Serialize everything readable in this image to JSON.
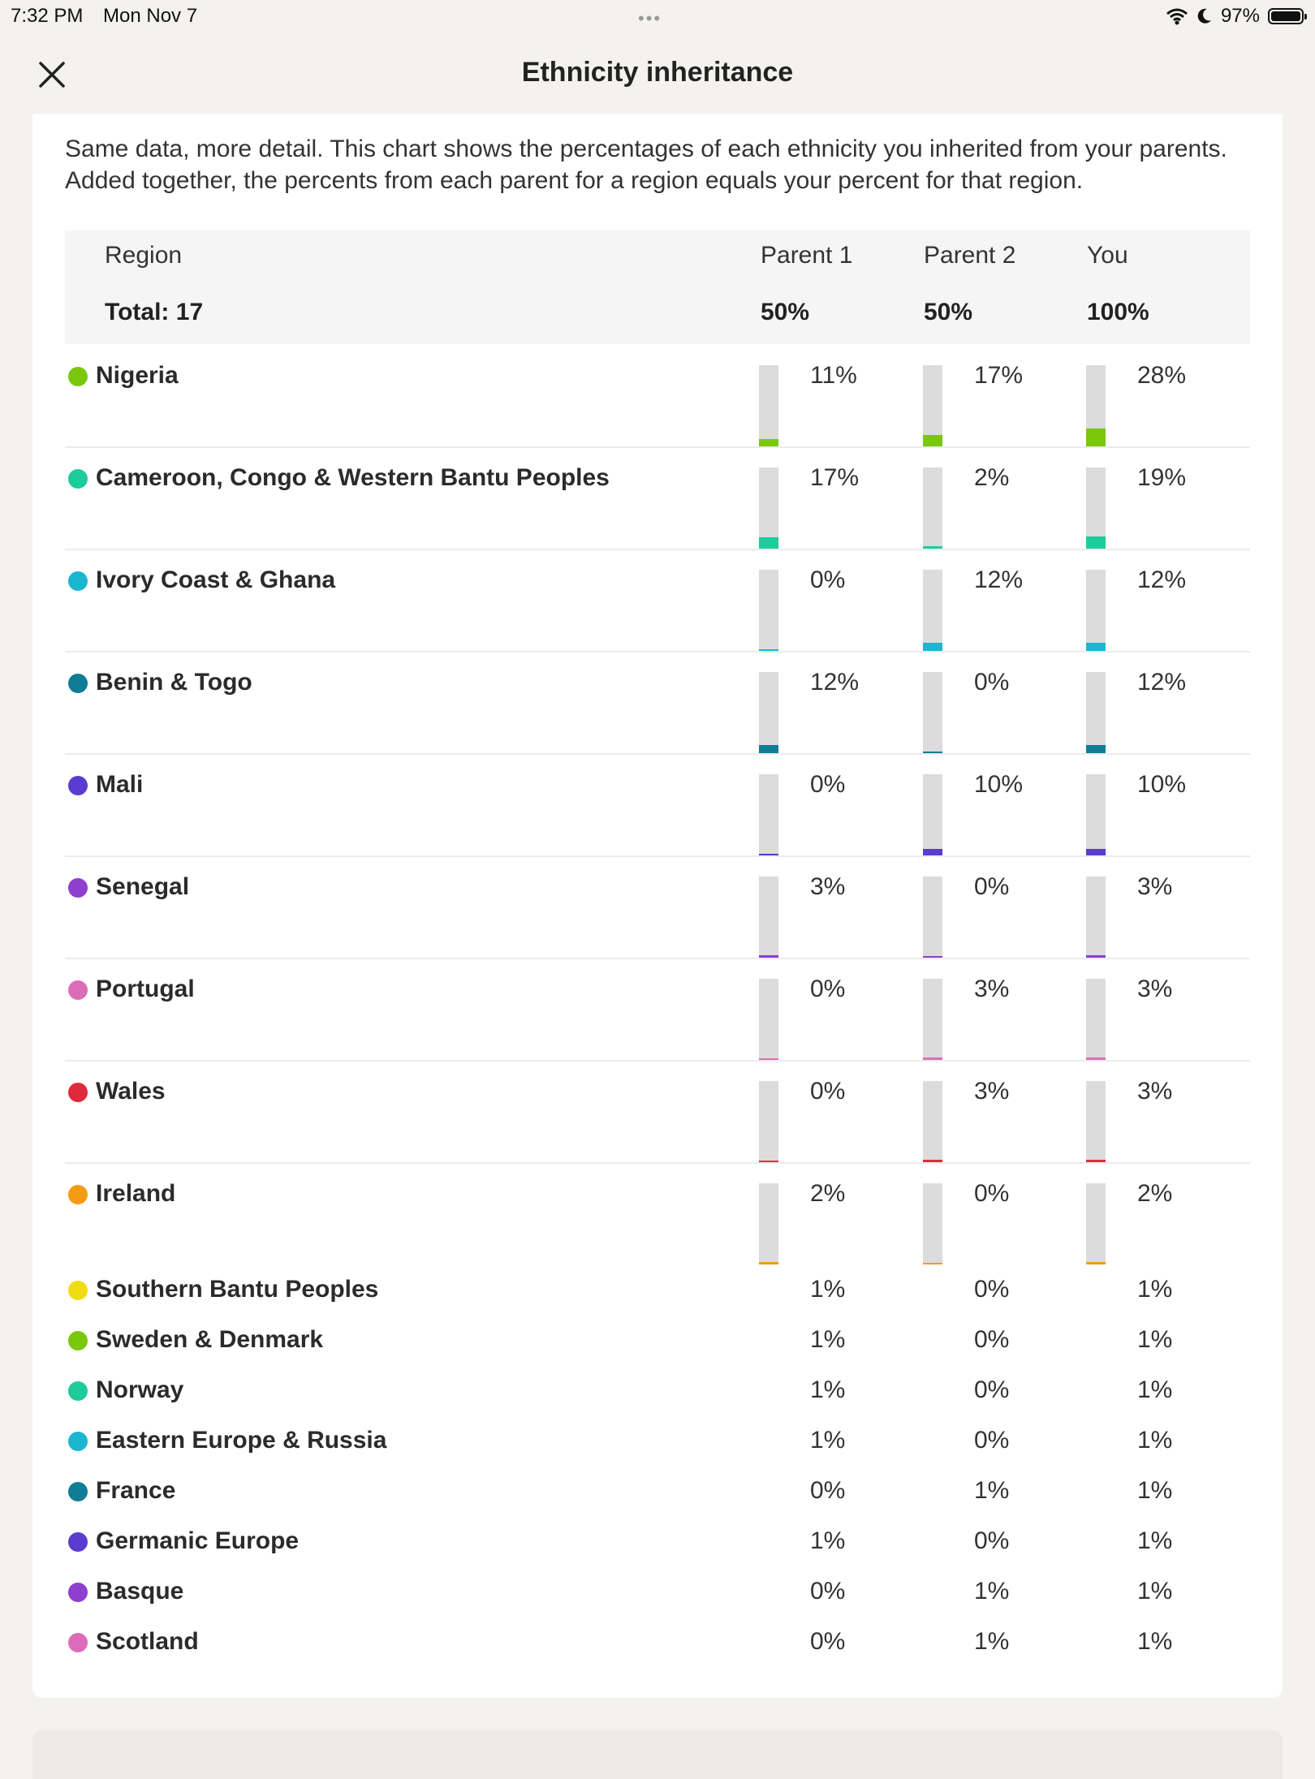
{
  "status": {
    "time": "7:32 PM",
    "date": "Mon Nov 7",
    "battery": "97%"
  },
  "header": {
    "title": "Ethnicity inheritance"
  },
  "intro": "Same data, more detail. This chart shows the percentages of each ethnicity you inherited from your parents. Added together, the percents from each parent for a region equals your percent for that region.",
  "table": {
    "headers": {
      "region": "Region",
      "parent1": "Parent 1",
      "parent2": "Parent 2",
      "you": "You"
    },
    "totals": {
      "region": "Total: 17",
      "parent1": "50%",
      "parent2": "50%",
      "you": "100%"
    }
  },
  "rows": [
    {
      "name": "Nigeria",
      "color": "#7ac70c",
      "p1": "11%",
      "p2": "17%",
      "you": "28%",
      "p1_value": 11,
      "p2_value": 17,
      "you_value": 28
    },
    {
      "name": "Cameroon, Congo & Western Bantu Peoples",
      "color": "#1ecb9a",
      "p1": "17%",
      "p2": "2%",
      "you": "19%",
      "p1_value": 17,
      "p2_value": 2,
      "you_value": 19
    },
    {
      "name": "Ivory Coast & Ghana",
      "color": "#1bb6d0",
      "p1": "0%",
      "p2": "12%",
      "you": "12%",
      "p1_value": 0,
      "p2_value": 12,
      "you_value": 12
    },
    {
      "name": "Benin & Togo",
      "color": "#0f7d96",
      "p1": "12%",
      "p2": "0%",
      "you": "12%",
      "p1_value": 12,
      "p2_value": 0,
      "you_value": 12
    },
    {
      "name": "Mali",
      "color": "#5a3ccf",
      "p1": "0%",
      "p2": "10%",
      "you": "10%",
      "p1_value": 0,
      "p2_value": 10,
      "you_value": 10
    },
    {
      "name": "Senegal",
      "color": "#8e3fcf",
      "p1": "3%",
      "p2": "0%",
      "you": "3%",
      "p1_value": 3,
      "p2_value": 0,
      "you_value": 3
    },
    {
      "name": "Portugal",
      "color": "#dd6cb8",
      "p1": "0%",
      "p2": "3%",
      "you": "3%",
      "p1_value": 0,
      "p2_value": 3,
      "you_value": 3
    },
    {
      "name": "Wales",
      "color": "#e02a3c",
      "p1": "0%",
      "p2": "3%",
      "you": "3%",
      "p1_value": 0,
      "p2_value": 3,
      "you_value": 3
    },
    {
      "name": "Ireland",
      "color": "#f39c12",
      "p1": "2%",
      "p2": "0%",
      "you": "2%",
      "p1_value": 2,
      "p2_value": 0,
      "you_value": 2
    }
  ],
  "small_rows": [
    {
      "name": "Southern Bantu Peoples",
      "color": "#f0dc12",
      "p1": "1%",
      "p2": "0%",
      "you": "1%"
    },
    {
      "name": "Sweden & Denmark",
      "color": "#7ac70c",
      "p1": "1%",
      "p2": "0%",
      "you": "1%"
    },
    {
      "name": "Norway",
      "color": "#1ecb9a",
      "p1": "1%",
      "p2": "0%",
      "you": "1%"
    },
    {
      "name": "Eastern Europe & Russia",
      "color": "#1bb6d0",
      "p1": "1%",
      "p2": "0%",
      "you": "1%"
    },
    {
      "name": "France",
      "color": "#0f7d96",
      "p1": "0%",
      "p2": "1%",
      "you": "1%"
    },
    {
      "name": "Germanic Europe",
      "color": "#5a3ccf",
      "p1": "1%",
      "p2": "0%",
      "you": "1%"
    },
    {
      "name": "Basque",
      "color": "#8e3fcf",
      "p1": "0%",
      "p2": "1%",
      "you": "1%"
    },
    {
      "name": "Scotland",
      "color": "#dd6cb8",
      "p1": "0%",
      "p2": "1%",
      "you": "1%"
    }
  ]
}
